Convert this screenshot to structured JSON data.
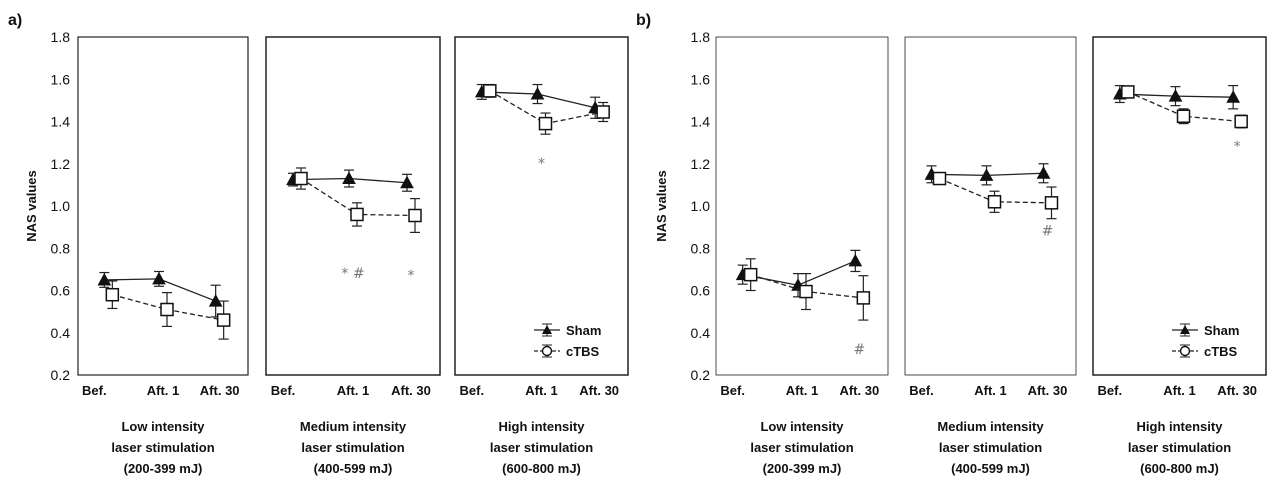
{
  "chart_data": [
    {
      "type": "line",
      "panel_label": "a)",
      "ylabel": "NAS values",
      "ylim": [
        0.2,
        1.8
      ],
      "yticks": [
        "0.2",
        "0.4",
        "0.6",
        "0.8",
        "1.0",
        "1.2",
        "1.4",
        "1.6",
        "1.8"
      ],
      "legend": {
        "position": "bottom-right",
        "entries": [
          "Sham",
          "cTBS"
        ]
      },
      "subplots": [
        {
          "caption": [
            "Low intensity",
            "laser stimulation",
            "(200-399 mJ)"
          ],
          "categories": [
            "Bef.",
            "Aft. 1",
            "Aft. 30"
          ],
          "series": [
            {
              "name": "Sham",
              "marker": "filled-triangle",
              "line": "solid",
              "values": [
                0.65,
                0.655,
                0.55
              ],
              "errors": [
                0.035,
                0.035,
                0.075
              ]
            },
            {
              "name": "cTBS",
              "marker": "open-square",
              "line": "dashed",
              "values": [
                0.58,
                0.51,
                0.46
              ],
              "errors": [
                0.065,
                0.08,
                0.09
              ]
            }
          ],
          "annotations": []
        },
        {
          "caption": [
            "Medium intensity",
            "laser stimulation",
            "(400-599 mJ)"
          ],
          "categories": [
            "Bef.",
            "Aft. 1",
            "Aft. 30"
          ],
          "series": [
            {
              "name": "Sham",
              "marker": "filled-triangle",
              "line": "solid",
              "values": [
                1.125,
                1.13,
                1.11
              ],
              "errors": [
                0.03,
                0.04,
                0.04
              ]
            },
            {
              "name": "cTBS",
              "marker": "open-square",
              "line": "dashed",
              "values": [
                1.13,
                0.96,
                0.955
              ],
              "errors": [
                0.05,
                0.055,
                0.08
              ]
            }
          ],
          "annotations": [
            {
              "category": "Aft. 1",
              "y": 0.66,
              "text": "* #"
            },
            {
              "category": "Aft. 30",
              "y": 0.65,
              "text": "*"
            }
          ]
        },
        {
          "caption": [
            "High intensity",
            "laser stimulation",
            "(600-800 mJ)"
          ],
          "categories": [
            "Bef.",
            "Aft. 1",
            "Aft. 30"
          ],
          "series": [
            {
              "name": "Sham",
              "marker": "filled-triangle",
              "line": "solid",
              "values": [
                1.54,
                1.53,
                1.465
              ],
              "errors": [
                0.035,
                0.045,
                0.05
              ]
            },
            {
              "name": "cTBS",
              "marker": "open-square",
              "line": "dashed",
              "values": [
                1.545,
                1.39,
                1.445
              ],
              "errors": [
                0.03,
                0.05,
                0.045
              ]
            }
          ],
          "annotations": [
            {
              "category": "Aft. 1",
              "y": 1.18,
              "text": "*"
            }
          ]
        }
      ]
    },
    {
      "type": "line",
      "panel_label": "b)",
      "ylabel": "NAS values",
      "ylim": [
        0.2,
        1.8
      ],
      "yticks": [
        "0.2",
        "0.4",
        "0.6",
        "0.8",
        "1.0",
        "1.2",
        "1.4",
        "1.6",
        "1.8"
      ],
      "legend": {
        "position": "bottom-right",
        "entries": [
          "Sham",
          "cTBS"
        ]
      },
      "subplots": [
        {
          "caption": [
            "Low intensity",
            "laser stimulation",
            "(200-399 mJ)"
          ],
          "categories": [
            "Bef.",
            "Aft. 1",
            "Aft. 30"
          ],
          "series": [
            {
              "name": "Sham",
              "marker": "filled-triangle",
              "line": "solid",
              "values": [
                0.675,
                0.625,
                0.74
              ],
              "errors": [
                0.045,
                0.055,
                0.05
              ]
            },
            {
              "name": "cTBS",
              "marker": "open-square",
              "line": "dashed",
              "values": [
                0.675,
                0.595,
                0.565
              ],
              "errors": [
                0.075,
                0.085,
                0.105
              ]
            }
          ],
          "annotations": [
            {
              "category": "Aft. 30",
              "y": 0.3,
              "text": "#"
            }
          ]
        },
        {
          "caption": [
            "Medium intensity",
            "laser stimulation",
            "(400-599 mJ)"
          ],
          "categories": [
            "Bef.",
            "Aft. 1",
            "Aft. 30"
          ],
          "series": [
            {
              "name": "Sham",
              "marker": "filled-triangle",
              "line": "solid",
              "values": [
                1.15,
                1.145,
                1.155
              ],
              "errors": [
                0.04,
                0.045,
                0.045
              ]
            },
            {
              "name": "cTBS",
              "marker": "open-square",
              "line": "dashed",
              "values": [
                1.13,
                1.02,
                1.015
              ],
              "errors": [
                0.025,
                0.05,
                0.075
              ]
            }
          ],
          "annotations": [
            {
              "category": "Aft. 30",
              "y": 0.86,
              "text": "#"
            }
          ]
        },
        {
          "caption": [
            "High intensity",
            "laser stimulation",
            "(600-800 mJ)"
          ],
          "categories": [
            "Bef.",
            "Aft. 1",
            "Aft. 30"
          ],
          "series": [
            {
              "name": "Sham",
              "marker": "filled-triangle",
              "line": "solid",
              "values": [
                1.53,
                1.52,
                1.515
              ],
              "errors": [
                0.04,
                0.045,
                0.055
              ]
            },
            {
              "name": "cTBS",
              "marker": "open-square",
              "line": "dashed",
              "values": [
                1.54,
                1.425,
                1.4
              ],
              "errors": [
                0.025,
                0.035,
                0.03
              ]
            }
          ],
          "annotations": [
            {
              "category": "Aft. 30",
              "y": 1.26,
              "text": "*"
            }
          ]
        }
      ]
    }
  ]
}
